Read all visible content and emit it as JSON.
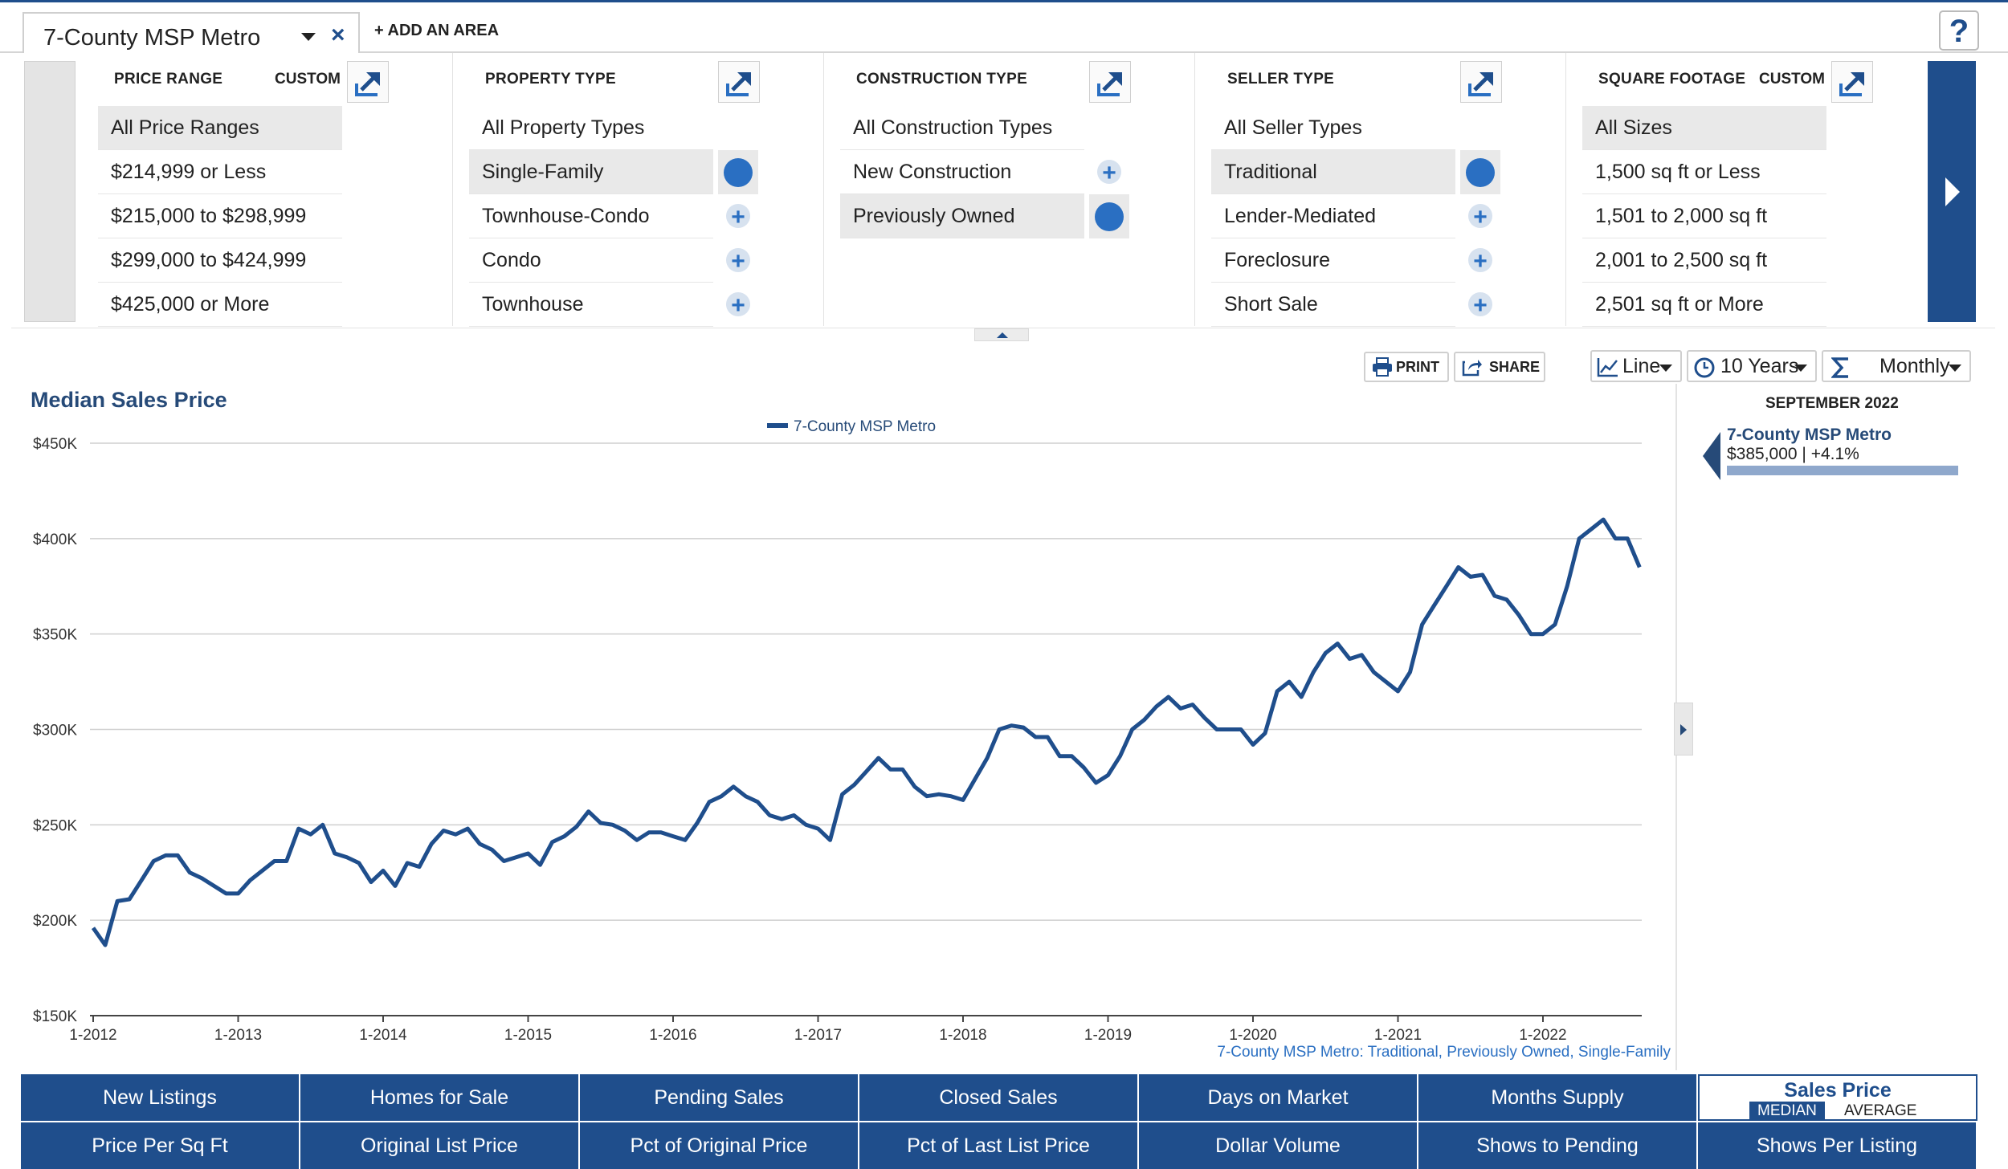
{
  "header": {
    "area_name": "7-County MSP Metro",
    "close_label": "×",
    "add_area_label": "+ ADD AN AREA",
    "help_label": "?"
  },
  "filters": [
    {
      "title": "PRICE RANGE",
      "custom_label": "CUSTOM",
      "items": [
        {
          "label": "All Price Ranges",
          "selected": true,
          "control": "none"
        },
        {
          "label": "$214,999 or Less",
          "selected": false,
          "control": "none"
        },
        {
          "label": "$215,000 to $298,999",
          "selected": false,
          "control": "none"
        },
        {
          "label": "$299,000 to $424,999",
          "selected": false,
          "control": "none"
        },
        {
          "label": "$425,000 or More",
          "selected": false,
          "control": "none"
        }
      ]
    },
    {
      "title": "PROPERTY TYPE",
      "custom_label": "",
      "items": [
        {
          "label": "All Property Types",
          "selected": false,
          "control": "none"
        },
        {
          "label": "Single-Family",
          "selected": true,
          "control": "dot"
        },
        {
          "label": "Townhouse-Condo",
          "selected": false,
          "control": "plus"
        },
        {
          "label": "Condo",
          "selected": false,
          "control": "plus"
        },
        {
          "label": "Townhouse",
          "selected": false,
          "control": "plus"
        }
      ]
    },
    {
      "title": "CONSTRUCTION TYPE",
      "custom_label": "",
      "items": [
        {
          "label": "All Construction Types",
          "selected": false,
          "control": "none"
        },
        {
          "label": "New Construction",
          "selected": false,
          "control": "plus"
        },
        {
          "label": "Previously Owned",
          "selected": true,
          "control": "dot"
        }
      ]
    },
    {
      "title": "SELLER TYPE",
      "custom_label": "",
      "items": [
        {
          "label": "All Seller Types",
          "selected": false,
          "control": "none"
        },
        {
          "label": "Traditional",
          "selected": true,
          "control": "dot"
        },
        {
          "label": "Lender-Mediated",
          "selected": false,
          "control": "plus"
        },
        {
          "label": "Foreclosure",
          "selected": false,
          "control": "plus"
        },
        {
          "label": "Short Sale",
          "selected": false,
          "control": "plus"
        }
      ]
    },
    {
      "title": "SQUARE FOOTAGE",
      "custom_label": "CUSTOM",
      "items": [
        {
          "label": "All Sizes",
          "selected": true,
          "control": "none"
        },
        {
          "label": "1,500 sq ft or Less",
          "selected": false,
          "control": "none"
        },
        {
          "label": "1,501 to 2,000 sq ft",
          "selected": false,
          "control": "none"
        },
        {
          "label": "2,001 to 2,500 sq ft",
          "selected": false,
          "control": "none"
        },
        {
          "label": "2,501 sq ft or More",
          "selected": false,
          "control": "none"
        }
      ]
    }
  ],
  "toolbar": {
    "print_label": "PRINT",
    "share_label": "SHARE",
    "chart_type": "Line",
    "range": "10 Years",
    "interval": "Monthly"
  },
  "side_panel": {
    "date": "SEPTEMBER 2022",
    "area": "7-County MSP Metro",
    "value_text": "$385,000 | +4.1%"
  },
  "colors": {
    "brand_blue": "#1f4e8c",
    "line_blue": "#1f4e8c",
    "title_blue": "#264a78"
  },
  "chart_data": {
    "type": "line",
    "title": "Median Sales Price",
    "legend_position": "top-center",
    "series": [
      {
        "name": "7-County MSP Metro",
        "start": "2012-01",
        "frequency": "monthly",
        "values": [
          196000,
          187000,
          210000,
          211000,
          221000,
          231000,
          234000,
          234000,
          225000,
          222000,
          218000,
          214000,
          214000,
          221000,
          226000,
          231000,
          231000,
          248000,
          245000,
          250000,
          235000,
          233000,
          230000,
          220000,
          226000,
          218000,
          230000,
          228000,
          240000,
          247000,
          245000,
          248000,
          240000,
          237000,
          231000,
          233000,
          235000,
          229000,
          241000,
          244000,
          249000,
          257000,
          251000,
          250000,
          247000,
          242000,
          246000,
          246000,
          244000,
          242000,
          251000,
          262000,
          265000,
          270000,
          265000,
          262000,
          255000,
          253000,
          255000,
          250000,
          248000,
          242000,
          266000,
          271000,
          278000,
          285000,
          279000,
          279000,
          270000,
          265000,
          266000,
          265000,
          263000,
          274000,
          285000,
          300000,
          302000,
          301000,
          296000,
          296000,
          286000,
          286000,
          280000,
          272000,
          276000,
          286000,
          300000,
          305000,
          312000,
          317000,
          311000,
          313000,
          306000,
          300000,
          300000,
          300000,
          292000,
          298000,
          320000,
          325000,
          317000,
          330000,
          340000,
          345000,
          337000,
          339000,
          330000,
          325000,
          320000,
          330000,
          355000,
          365000,
          375000,
          385000,
          380000,
          381000,
          370000,
          368000,
          360000,
          350000,
          350000,
          355000,
          375000,
          400000,
          405000,
          410000,
          400000,
          400000,
          385000
        ]
      }
    ],
    "x_ticks": [
      "1-2012",
      "1-2013",
      "1-2014",
      "1-2015",
      "1-2016",
      "1-2017",
      "1-2018",
      "1-2019",
      "1-2020",
      "1-2021",
      "1-2022"
    ],
    "y_ticks": [
      "$150K",
      "$200K",
      "$250K",
      "$300K",
      "$350K",
      "$400K",
      "$450K"
    ],
    "ylim": [
      150000,
      450000
    ],
    "grid": true,
    "footnote": "7-County MSP Metro: Traditional, Previously Owned, Single-Family"
  },
  "metric_tabs": [
    [
      "New Listings",
      "Homes for Sale",
      "Pending Sales",
      "Closed Sales",
      "Days on Market",
      "Months Supply",
      "Sales Price"
    ],
    [
      "Price Per Sq Ft",
      "Original List Price",
      "Pct of Original Price",
      "Pct of Last List Price",
      "Dollar Volume",
      "Shows to Pending",
      "Shows Per Listing"
    ]
  ],
  "active_metric": {
    "label": "Sales Price",
    "option_on": "MEDIAN",
    "option_off": "AVERAGE"
  }
}
